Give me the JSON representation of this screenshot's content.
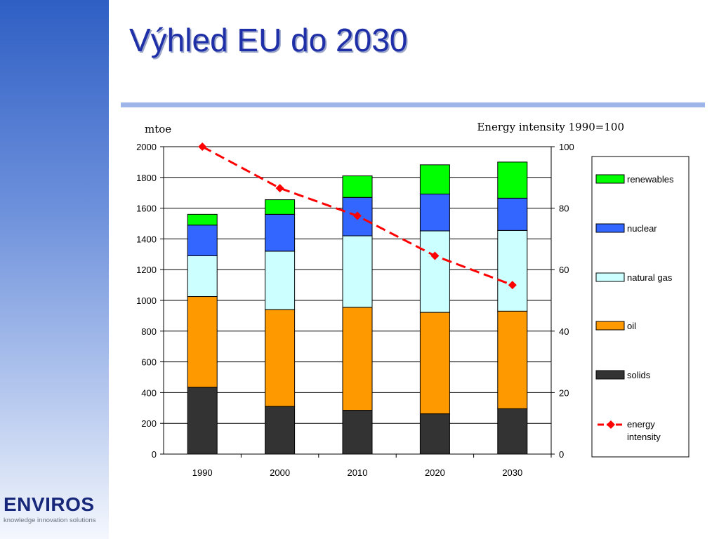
{
  "slide": {
    "title": "Výhled EU do 2030"
  },
  "logo": {
    "name": "ENVIROS",
    "tagline": "knowledge innovation solutions"
  },
  "chart_data": {
    "type": "bar",
    "stacked": true,
    "categories": [
      "1990",
      "2000",
      "2010",
      "2020",
      "2030"
    ],
    "y_left_label": "mtoe",
    "y_left_lim": [
      0,
      2000
    ],
    "y_left_ticks": [
      0,
      200,
      400,
      600,
      800,
      1000,
      1200,
      1400,
      1600,
      1800,
      2000
    ],
    "y_right_label": "Energy intensity 1990=100",
    "y_right_lim": [
      0,
      100
    ],
    "y_right_ticks": [
      0,
      20,
      40,
      60,
      80,
      100
    ],
    "grid": "horizontal",
    "legend_position": "right",
    "series": [
      {
        "name": "solids",
        "color": "#333333",
        "values": [
          435,
          310,
          285,
          262,
          295
        ]
      },
      {
        "name": "oil",
        "color": "#ff9900",
        "values": [
          590,
          630,
          670,
          660,
          635
        ]
      },
      {
        "name": "natural gas",
        "color": "#ccffff",
        "values": [
          265,
          380,
          465,
          530,
          525
        ]
      },
      {
        "name": "nuclear",
        "color": "#3366ff",
        "values": [
          200,
          240,
          250,
          240,
          210
        ]
      },
      {
        "name": "renewables",
        "color": "#00ff00",
        "values": [
          70,
          95,
          140,
          190,
          235
        ]
      }
    ],
    "line_series": {
      "name": "energy intensity",
      "axis": "right",
      "color": "#ff0000",
      "values": [
        100,
        86.5,
        77.5,
        64.5,
        55
      ]
    },
    "legend_order": [
      "renewables",
      "nuclear",
      "natural gas",
      "oil",
      "solids",
      "energy intensity"
    ]
  }
}
